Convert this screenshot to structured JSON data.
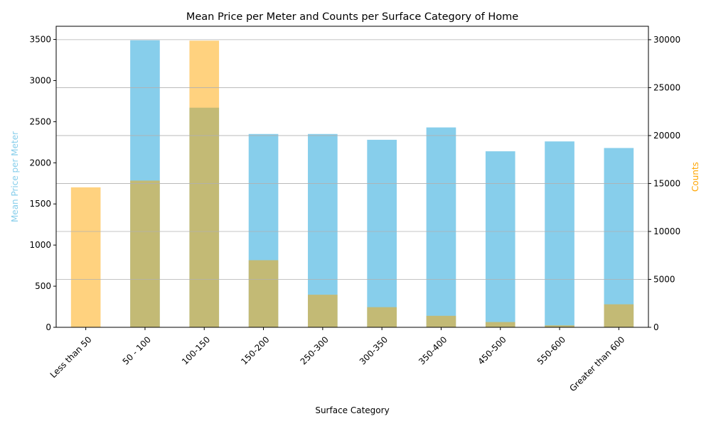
{
  "chart_data": {
    "type": "bar",
    "title": "Mean Price per Meter and Counts per Surface Category of Home",
    "xlabel": "Surface Category",
    "ylabel_left": "Mean Price per Meter",
    "ylabel_right": "Counts",
    "categories": [
      "Less than 50",
      "50 - 100",
      "100-150",
      "150-200",
      "250-300",
      "300-350",
      "350-400",
      "450-500",
      "550-600",
      "Greater than 600"
    ],
    "series": [
      {
        "axis": "left",
        "color": "#87CEEB",
        "values": [
          0,
          3490,
          2670,
          2350,
          2350,
          2280,
          2430,
          2140,
          2260,
          2180
        ]
      },
      {
        "axis": "right",
        "color": "#FFA500",
        "opacity": 0.5,
        "values": [
          14600,
          15300,
          29900,
          7000,
          3400,
          2100,
          1200,
          550,
          200,
          2400
        ]
      }
    ],
    "ylim_left": [
      0,
      3660
    ],
    "ylim_right": [
      0,
      31400
    ],
    "yticks_left": [
      "0",
      "500",
      "1000",
      "1500",
      "2000",
      "2500",
      "3000",
      "3500"
    ],
    "yticks_right": [
      "0",
      "5000",
      "10000",
      "15000",
      "20000",
      "25000",
      "30000"
    ],
    "grid": "horizontal, right axis",
    "left_label_color": "#87CEEB",
    "right_label_color": "#FFA500"
  }
}
